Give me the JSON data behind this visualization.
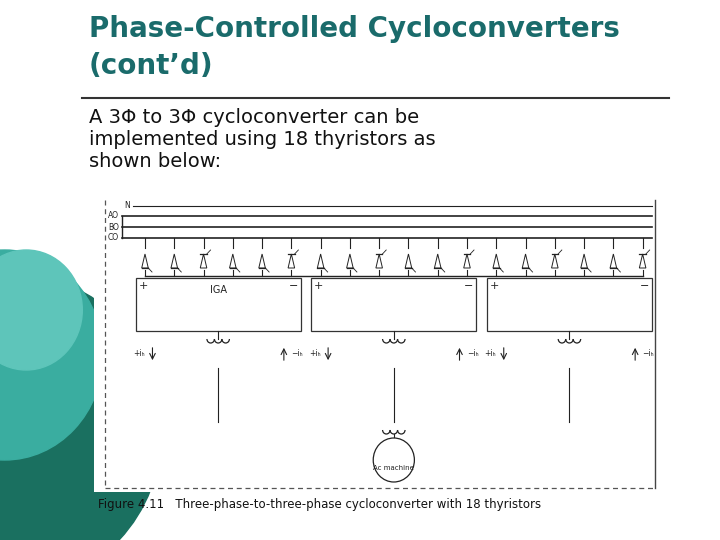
{
  "title_line1": "Phase-Controlled Cycloconverters",
  "title_line2": "(cont’d)",
  "title_color": "#1a6b6b",
  "title_fontsize": 20,
  "bg_color": "#ffffff",
  "circle_color1": "#1a7a72",
  "circle_color2": "#4aadaa",
  "body_lines": [
    "A 3Φ to 3Φ cycloconverter can be",
    "implemented using 18 thyristors as",
    "shown below:"
  ],
  "body_fontsize": 14,
  "body_color": "#111111",
  "figure_caption": "Figure 4.11   Three-phase-to-three-phase cycloconverter with 18 thyristors",
  "caption_fontsize": 8.5,
  "separator_color": "#333333"
}
